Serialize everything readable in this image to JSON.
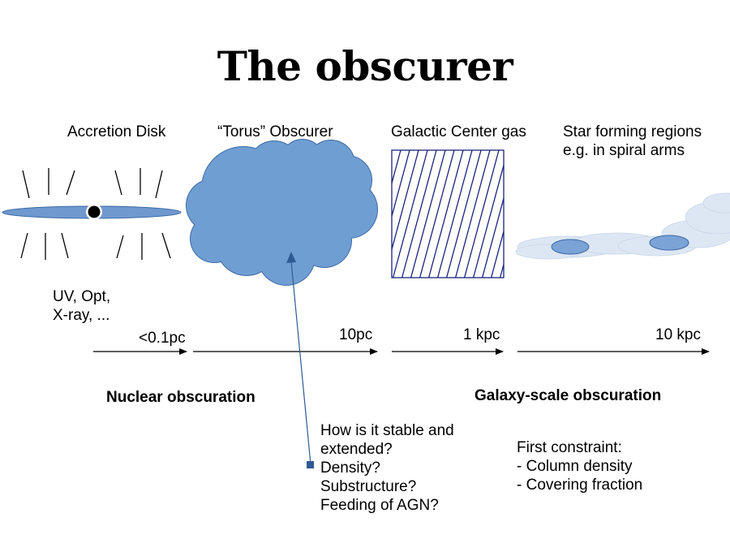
{
  "title": "The obscurer",
  "regions": {
    "accretion": "Accretion Disk",
    "torus": "“Torus” Obscurer",
    "galactic": "Galactic Center gas",
    "starforming": "Star forming regions\ne.g. in spiral arms"
  },
  "wavelengths": "UV, Opt,\nX-ray, ...",
  "scales": [
    "<0.1pc",
    "10pc",
    "1 kpc",
    "10 kpc"
  ],
  "categories": {
    "nuclear": "Nuclear obscuration",
    "galaxy": "Galaxy-scale obscuration"
  },
  "questions": "How is it stable and\nextended?\nDensity?\nSubstructure?\nFeeding of AGN?",
  "constraints": "First constraint:\n- Column density\n- Covering fraction",
  "colors": {
    "disk": "#6f99cf",
    "cloud": "#6f9ed3",
    "hatch": "#1a237e",
    "haze": "#dbe6f3",
    "pointer": "#2f5a93"
  }
}
